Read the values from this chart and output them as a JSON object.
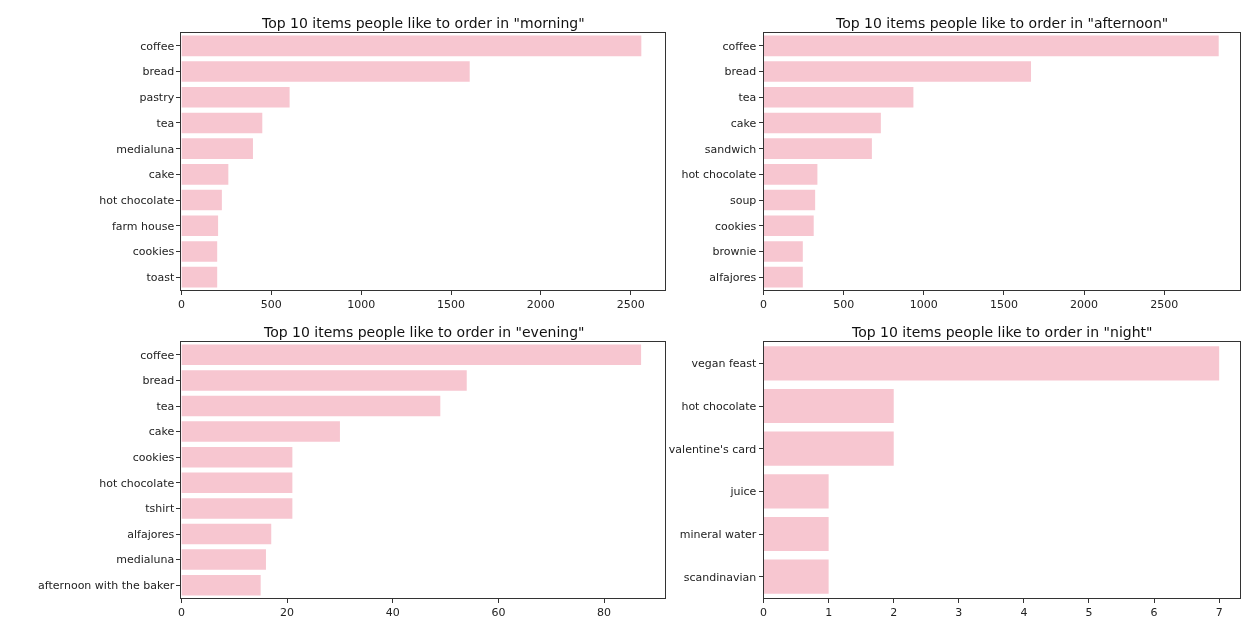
{
  "chart_data": [
    {
      "type": "bar",
      "orientation": "horizontal",
      "title": "Top 10 items people like to order in \"morning\"",
      "categories": [
        "coffee",
        "bread",
        "pastry",
        "tea",
        "medialuna",
        "cake",
        "hot chocolate",
        "farm house",
        "cookies",
        "toast"
      ],
      "values": [
        2559,
        1604,
        602,
        450,
        398,
        261,
        225,
        204,
        199,
        199
      ],
      "color": "#f7c6d0",
      "xlim": [
        0,
        2690
      ],
      "xticks": [
        0,
        500,
        1000,
        1500,
        2000,
        2500
      ]
    },
    {
      "type": "bar",
      "orientation": "horizontal",
      "title": "Top 10 items people like to order in \"afternoon\"",
      "categories": [
        "coffee",
        "bread",
        "tea",
        "cake",
        "sandwich",
        "hot chocolate",
        "soup",
        "cookies",
        "brownie",
        "alfajores"
      ],
      "values": [
        2840,
        1669,
        935,
        732,
        676,
        336,
        322,
        313,
        245,
        245
      ],
      "color": "#f7c6d0",
      "xlim": [
        0,
        2973
      ],
      "xticks": [
        0,
        500,
        1000,
        1500,
        2000,
        2500
      ]
    },
    {
      "type": "bar",
      "orientation": "horizontal",
      "title": "Top 10 items people like to order in \"evening\"",
      "categories": [
        "coffee",
        "bread",
        "tea",
        "cake",
        "cookies",
        "hot chocolate",
        "tshirt",
        "alfajores",
        "medialuna",
        "afternoon with the baker"
      ],
      "values": [
        87,
        54,
        49,
        30,
        21,
        21,
        21,
        17,
        16,
        15
      ],
      "color": "#f7c6d0",
      "xlim": [
        0,
        91.5
      ],
      "xticks": [
        0,
        20,
        40,
        60,
        80
      ]
    },
    {
      "type": "bar",
      "orientation": "horizontal",
      "title": "Top 10 items people like to order in \"night\"",
      "categories": [
        "vegan feast",
        "hot chocolate",
        "valentine's card",
        "juice",
        "mineral water",
        "scandinavian"
      ],
      "values": [
        7,
        2,
        2,
        1,
        1,
        1
      ],
      "color": "#f7c6d0",
      "xlim": [
        0,
        7.32
      ],
      "xticks": [
        0,
        1,
        2,
        3,
        4,
        5,
        6,
        7
      ]
    }
  ]
}
